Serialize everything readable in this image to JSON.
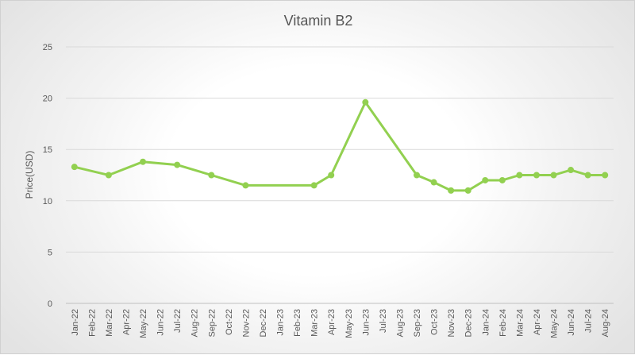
{
  "chart_data": {
    "type": "line",
    "title": "Vitamin B2",
    "xlabel": "",
    "ylabel": "Price(USD)",
    "ylim": [
      0,
      25
    ],
    "yticks": [
      0,
      5,
      10,
      15,
      20,
      25
    ],
    "grid": true,
    "legend": "none",
    "categories": [
      "Jan-22",
      "Feb-22",
      "Mar-22",
      "Apr-22",
      "May-22",
      "Jun-22",
      "Jul-22",
      "Aug-22",
      "Sep-22",
      "Oct-22",
      "Nov-22",
      "Dec-22",
      "Jan-23",
      "Feb-23",
      "Mar-23",
      "Apr-23",
      "May-23",
      "Jun-23",
      "Jul-23",
      "Aug-23",
      "Sep-23",
      "Oct-23",
      "Nov-23",
      "Dec-23",
      "Jan-24",
      "Feb-24",
      "Mar-24",
      "Apr-24",
      "May-24",
      "Jun-24",
      "Jul-24",
      "Aug-24"
    ],
    "series": [
      {
        "color": "#92d050",
        "points": [
          {
            "x": "Jan-22",
            "y": 13.3
          },
          {
            "x": "Mar-22",
            "y": 12.5
          },
          {
            "x": "May-22",
            "y": 13.8
          },
          {
            "x": "Jul-22",
            "y": 13.5
          },
          {
            "x": "Sep-22",
            "y": 12.5
          },
          {
            "x": "Nov-22",
            "y": 11.5
          },
          {
            "x": "Mar-23",
            "y": 11.5
          },
          {
            "x": "Apr-23",
            "y": 12.5
          },
          {
            "x": "Jun-23",
            "y": 19.6
          },
          {
            "x": "Sep-23",
            "y": 12.5
          },
          {
            "x": "Oct-23",
            "y": 11.8
          },
          {
            "x": "Nov-23",
            "y": 11.0
          },
          {
            "x": "Dec-23",
            "y": 11.0
          },
          {
            "x": "Jan-24",
            "y": 12.0
          },
          {
            "x": "Feb-24",
            "y": 12.0
          },
          {
            "x": "Mar-24",
            "y": 12.5
          },
          {
            "x": "Apr-24",
            "y": 12.5
          },
          {
            "x": "May-24",
            "y": 12.5
          },
          {
            "x": "Jun-24",
            "y": 13.0
          },
          {
            "x": "Jul-24",
            "y": 12.5
          },
          {
            "x": "Aug-24",
            "y": 12.5
          }
        ]
      }
    ],
    "colors": {
      "gridline": "#d9d9d9",
      "axis": "#bfbfbf",
      "line": "#92d050"
    }
  }
}
